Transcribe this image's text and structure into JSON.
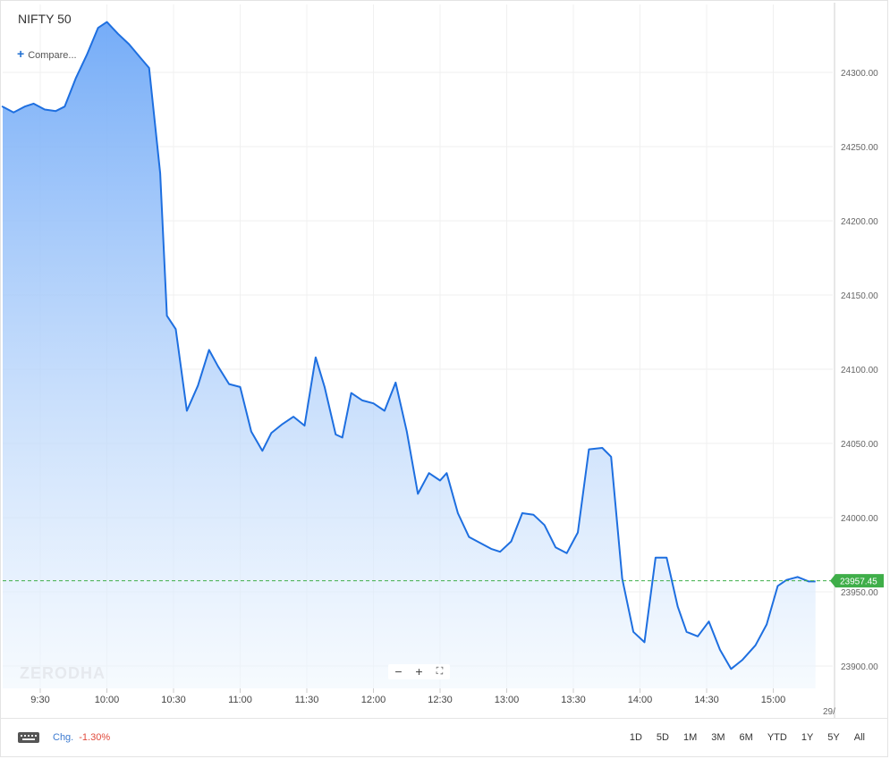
{
  "header": {
    "title": "NIFTY 50",
    "compare_label": "Compare..."
  },
  "watermark": "ZERODHA",
  "zoom": {
    "minus": "−",
    "plus": "+",
    "fit": "⛶"
  },
  "footer": {
    "chg_label": "Chg.",
    "chg_value": "-1.30%",
    "ranges": [
      "1D",
      "5D",
      "1M",
      "3M",
      "6M",
      "YTD",
      "1Y",
      "5Y",
      "All"
    ],
    "date_fragment": "29/"
  },
  "colors": {
    "line": "#1e6fe0",
    "fill_top": "#6ea8f7",
    "fill_bottom": "#f0f7fe",
    "last_badge": "#3fae49",
    "down": "#e04a3c"
  },
  "chart_data": {
    "type": "area",
    "title": "NIFTY 50",
    "last_value_label": "23957.45",
    "ylim": [
      23880,
      24340
    ],
    "y_ticks": [
      23900,
      23950,
      24000,
      24050,
      24100,
      24150,
      24200,
      24250,
      24300
    ],
    "y_tick_labels": [
      "23900.00",
      "23950.00",
      "24000.00",
      "24050.00",
      "24100.00",
      "24150.00",
      "24200.00",
      "24250.00",
      "24300.00"
    ],
    "x_ticks": [
      "9:30",
      "10:00",
      "10:30",
      "11:00",
      "11:30",
      "12:00",
      "12:30",
      "13:00",
      "13:30",
      "14:00",
      "14:30",
      "15:00"
    ],
    "x_tick_minutes": [
      570,
      600,
      630,
      660,
      690,
      720,
      750,
      780,
      810,
      840,
      870,
      900
    ],
    "xlim": [
      551,
      927
    ],
    "series": [
      {
        "x": [
          551,
          553,
          558,
          563,
          567,
          572,
          577,
          581,
          586,
          591,
          596,
          600,
          605,
          610,
          615,
          619,
          624,
          627,
          631,
          636,
          641,
          646,
          650,
          655,
          660,
          665,
          670,
          674,
          679,
          684,
          689,
          694,
          698,
          703,
          706,
          710,
          715,
          720,
          725,
          730,
          735,
          740,
          745,
          750,
          753,
          758,
          763,
          768,
          773,
          777,
          782,
          787,
          792,
          797,
          802,
          807,
          812,
          817,
          823,
          827,
          832,
          837,
          842,
          847,
          852,
          857,
          861,
          866,
          871,
          876,
          881,
          886,
          892,
          897,
          902,
          906,
          911,
          916,
          919
        ],
        "y": [
          24277,
          24277,
          24273,
          24277,
          24279,
          24275,
          24274,
          24277,
          24296,
          24312,
          24330,
          24334,
          24326,
          24319,
          24310,
          24303,
          24232,
          24136,
          24127,
          24072,
          24089,
          24113,
          24102,
          24090,
          24088,
          24058,
          24045,
          24057,
          24063,
          24068,
          24062,
          24108,
          24088,
          24056,
          24054,
          24084,
          24079,
          24077,
          24072,
          24091,
          24058,
          24016,
          24030,
          24025,
          24030,
          24003,
          23987,
          23983,
          23979,
          23977,
          23984,
          24003,
          24002,
          23995,
          23980,
          23976,
          23990,
          24046,
          24047,
          24041,
          23959,
          23923,
          23916,
          23973,
          23973,
          23940,
          23923,
          23920,
          23930,
          23911,
          23898,
          23904,
          23914,
          23928,
          23954,
          23958,
          23960,
          23957,
          23957
        ]
      }
    ]
  }
}
